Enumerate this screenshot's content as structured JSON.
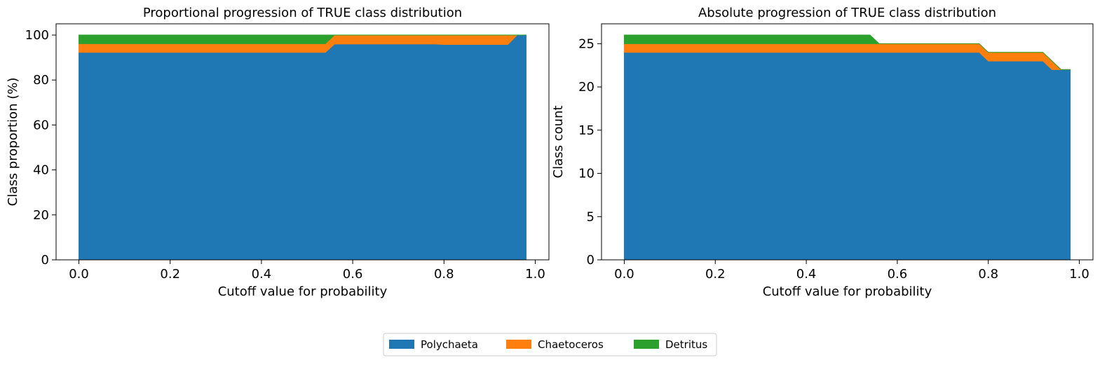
{
  "chart_data": [
    {
      "type": "area",
      "stacked": true,
      "title": "Proportional progression of TRUE class distribution",
      "xlabel": "Cutoff value for probability",
      "ylabel": "Class proportion (%)",
      "xlim": [
        -0.05,
        1.03
      ],
      "ylim": [
        0,
        105
      ],
      "xticks": [
        "0.0",
        "0.2",
        "0.4",
        "0.6",
        "0.8",
        "1.0"
      ],
      "yticks": [
        "0",
        "20",
        "40",
        "60",
        "80",
        "100"
      ],
      "x": [
        0.0,
        0.54,
        0.56,
        0.78,
        0.8,
        0.92,
        0.94,
        0.96,
        0.98
      ],
      "series": [
        {
          "name": "Polychaeta",
          "values": [
            92.3,
            92.3,
            96.0,
            96.0,
            95.8,
            95.8,
            95.8,
            100.0,
            100.0
          ]
        },
        {
          "name": "Chaetoceros",
          "values": [
            3.85,
            3.85,
            4.0,
            4.0,
            4.2,
            4.2,
            4.2,
            0.0,
            0.0
          ]
        },
        {
          "name": "Detritus",
          "values": [
            3.85,
            3.85,
            0.0,
            0.0,
            0.0,
            0.0,
            0.0,
            0.0,
            0.0
          ]
        }
      ],
      "grid": false
    },
    {
      "type": "area",
      "stacked": true,
      "title": "Absolute progression of TRUE class distribution",
      "xlabel": "Cutoff value for probability",
      "ylabel": "Class count",
      "xlim": [
        -0.05,
        1.03
      ],
      "ylim": [
        0,
        27.3
      ],
      "xticks": [
        "0.0",
        "0.2",
        "0.4",
        "0.6",
        "0.8",
        "1.0"
      ],
      "yticks": [
        "0",
        "5",
        "10",
        "15",
        "20",
        "25"
      ],
      "x": [
        0.0,
        0.54,
        0.56,
        0.78,
        0.8,
        0.92,
        0.94,
        0.96,
        0.98
      ],
      "series": [
        {
          "name": "Polychaeta",
          "values": [
            24,
            24,
            24,
            24,
            23,
            23,
            22,
            22,
            22
          ]
        },
        {
          "name": "Chaetoceros",
          "values": [
            1,
            1,
            1,
            1,
            1,
            1,
            1,
            0,
            0
          ]
        },
        {
          "name": "Detritus",
          "values": [
            1,
            1,
            0,
            0,
            0,
            0,
            0,
            0,
            0
          ]
        }
      ],
      "grid": false
    }
  ],
  "legend": {
    "placement": "bottom-center",
    "items": [
      {
        "label": "Polychaeta",
        "color": "#1f77b4"
      },
      {
        "label": "Chaetoceros",
        "color": "#ff7f0e"
      },
      {
        "label": "Detritus",
        "color": "#2ca02c"
      }
    ]
  }
}
